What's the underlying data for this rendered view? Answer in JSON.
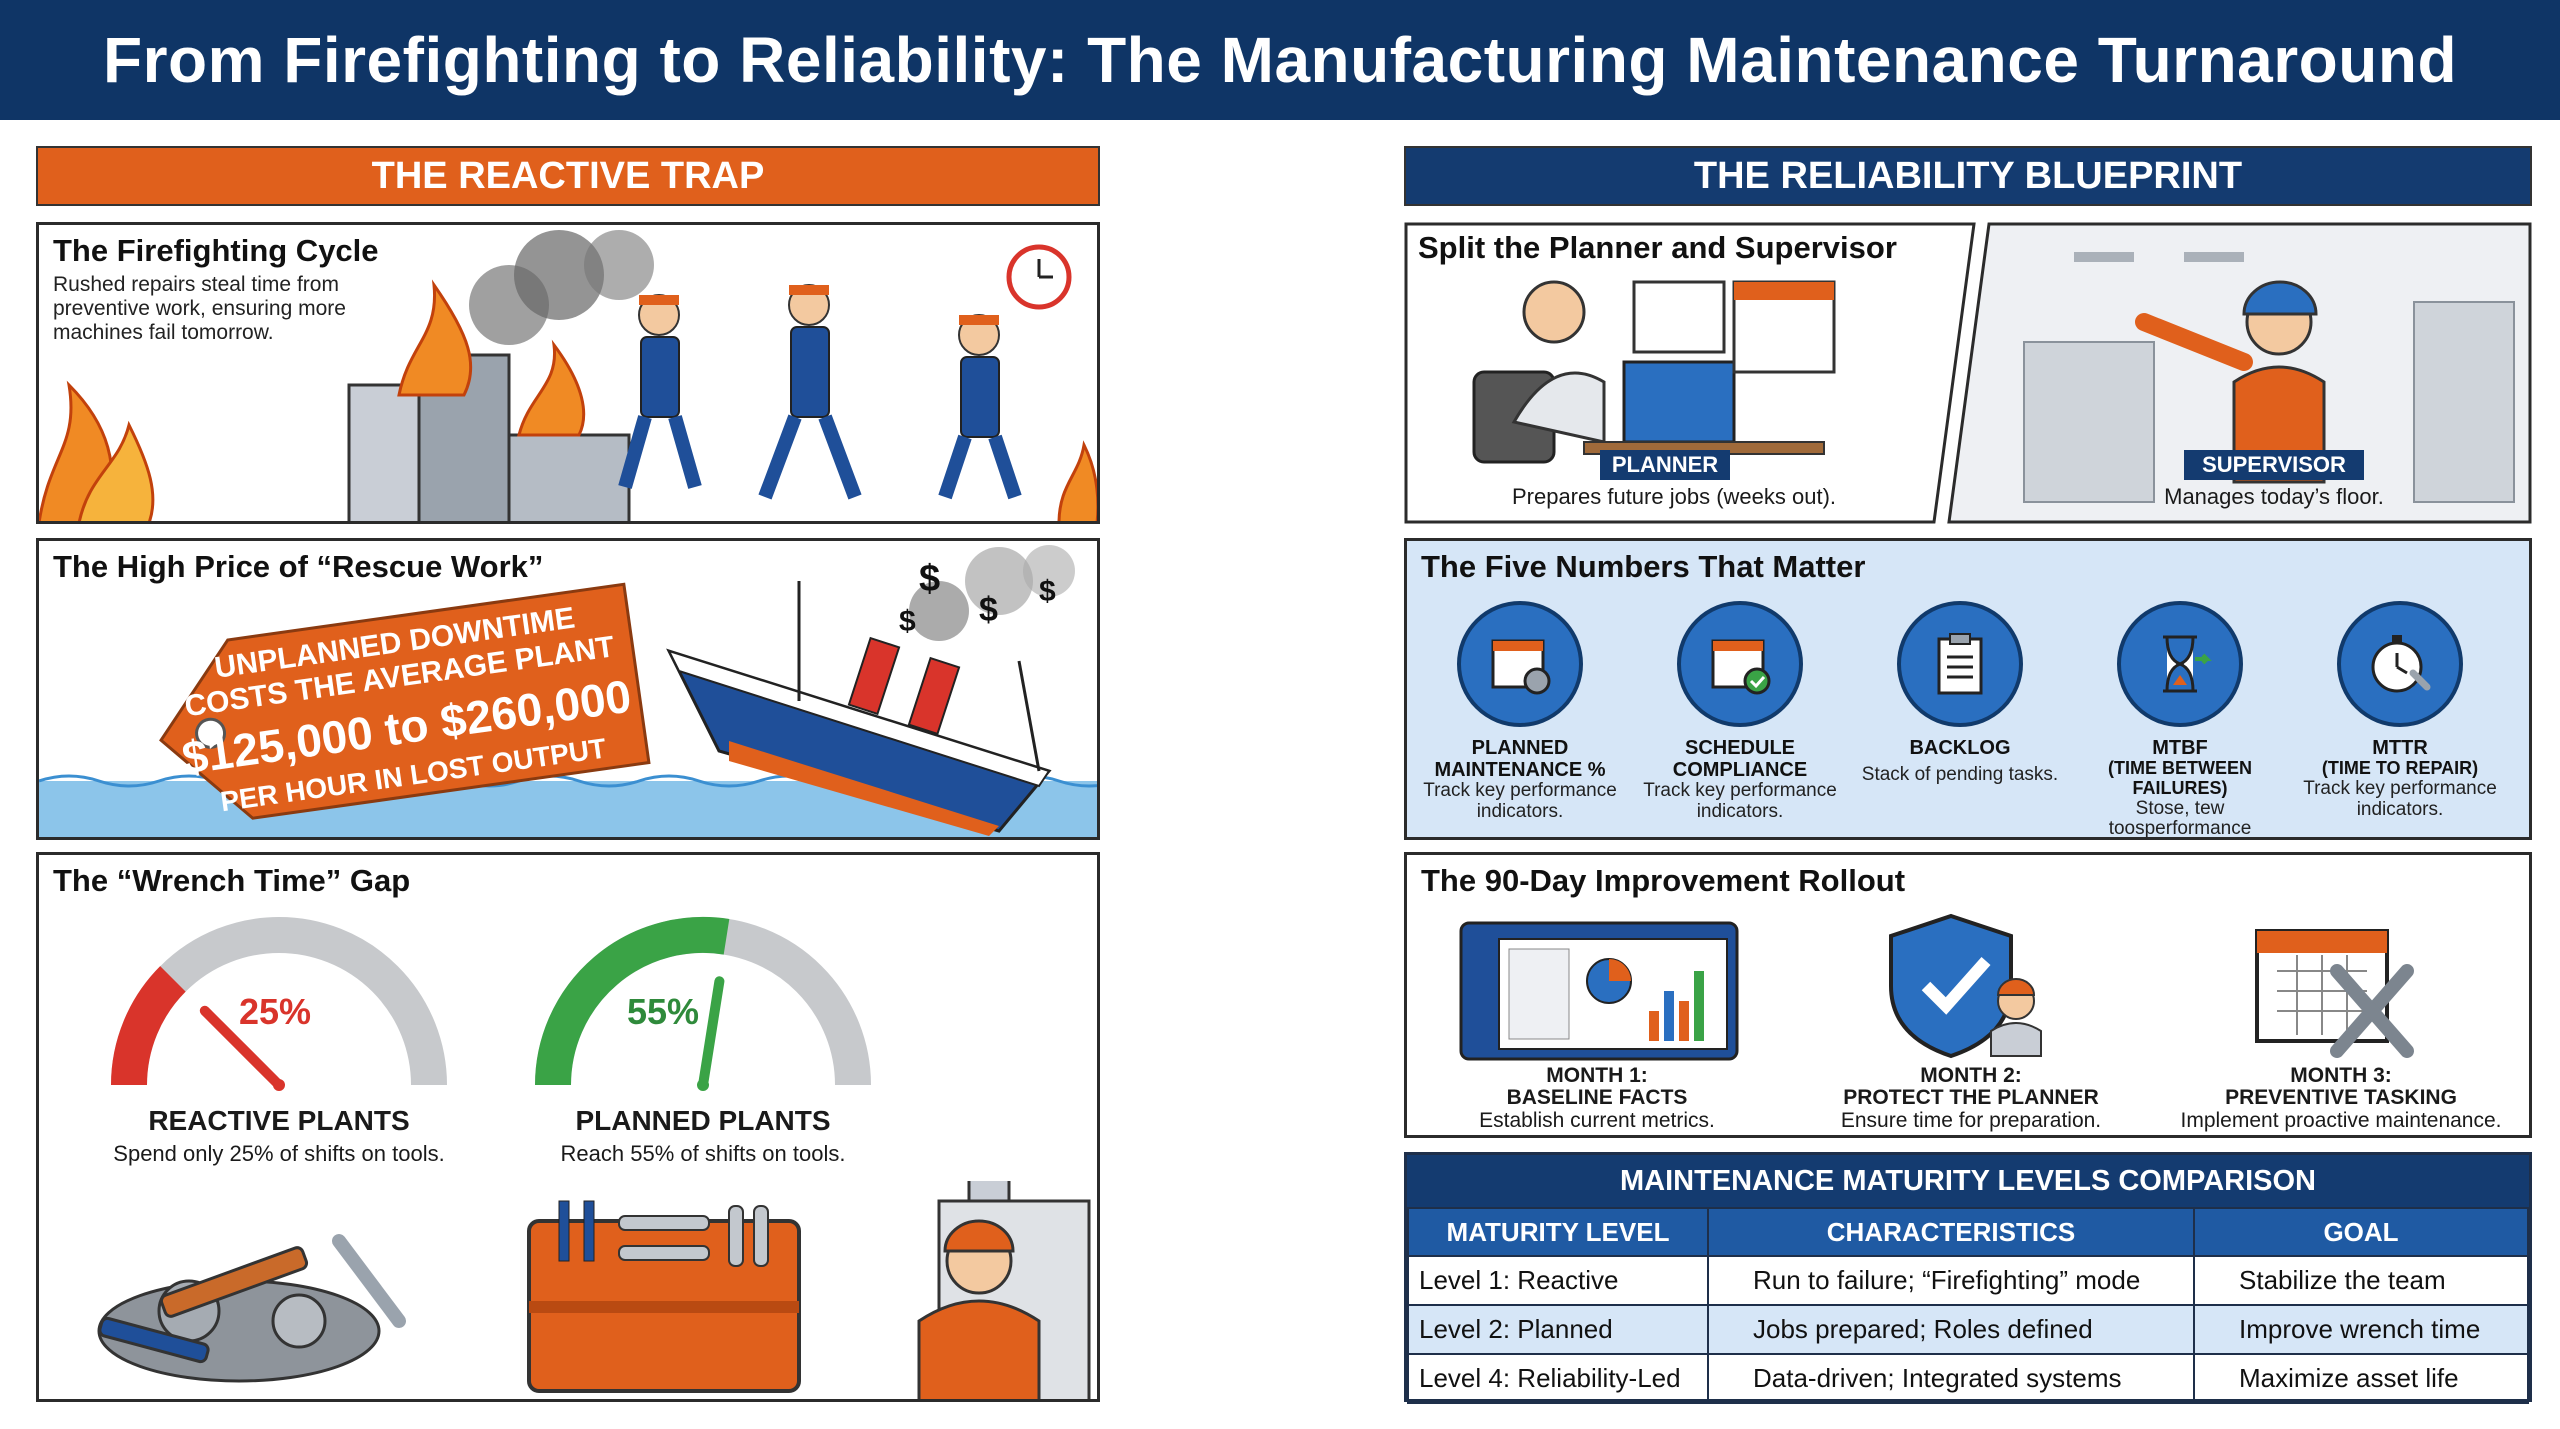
{
  "title": "From Firefighting to Reliability: The Manufacturing Maintenance Turnaround",
  "left": {
    "header": "THE REACTIVE TRAP",
    "firefighting": {
      "title": "The Firefighting Cycle",
      "text": "Rushed repairs steal time from preventive work, ensuring more machines fail tomorrow."
    },
    "rescue": {
      "title": "The High Price of “Rescue Work”",
      "tag_line1": "UNPLANNED DOWNTIME",
      "tag_line2": "COSTS THE AVERAGE PLANT",
      "tag_amount": "$125,000 to $260,000",
      "tag_line3": "PER HOUR IN LOST OUTPUT"
    },
    "wrench": {
      "title": "The “Wrench Time” Gap",
      "reactive": {
        "value": 25,
        "label": "25%",
        "name": "REACTIVE PLANTS",
        "desc": "Spend only 25% of shifts on tools."
      },
      "planned": {
        "value": 55,
        "label": "55%",
        "name": "PLANNED PLANTS",
        "desc": "Reach 55% of shifts on tools."
      }
    }
  },
  "right": {
    "header": "THE RELIABILITY BLUEPRINT",
    "split": {
      "title": "Split the Planner and Supervisor",
      "planner_label": "PLANNER",
      "planner_desc": "Prepares future jobs (weeks out).",
      "supervisor_label": "SUPERVISOR",
      "supervisor_desc": "Manages today’s floor."
    },
    "five": {
      "title": "The Five Numbers That Matter",
      "metrics": [
        {
          "name1": "PLANNED",
          "name2": "MAINTENANCE %",
          "desc": "Track key performance indicators."
        },
        {
          "name1": "SCHEDULE",
          "name2": "COMPLIANCE",
          "desc": "Track key performance indicators."
        },
        {
          "name1": "BACKLOG",
          "name2": "",
          "desc": "Stack of pending tasks."
        },
        {
          "name1": "MTBF",
          "name2": "(TIME BETWEEN FAILURES)",
          "desc": "Stose, tew toosperformance indicators."
        },
        {
          "name1": "MTTR",
          "name2": "(TIME TO REPAIR)",
          "desc": "Track key performance indicators."
        }
      ]
    },
    "rollout": {
      "title": "The 90-Day Improvement Rollout",
      "months": [
        {
          "month": "MONTH 1:",
          "name": "BASELINE FACTS",
          "desc": "Establish current metrics."
        },
        {
          "month": "MONTH 2:",
          "name": "PROTECT THE PLANNER",
          "desc": "Ensure time for preparation."
        },
        {
          "month": "MONTH 3:",
          "name": "PREVENTIVE TASKING",
          "desc": "Implement proactive maintenance."
        }
      ]
    },
    "table": {
      "title": "MAINTENANCE MATURITY LEVELS COMPARISON",
      "headers": [
        "MATURITY LEVEL",
        "CHARACTERISTICS",
        "GOAL"
      ],
      "rows": [
        [
          "Level 1: Reactive",
          "Run to failure; “Firefighting” mode",
          "Stabilize the team"
        ],
        [
          "Level 2: Planned",
          "Jobs prepared; Roles defined",
          "Improve wrench time"
        ],
        [
          "Level 4: Reliability-Led",
          "Data-driven; Integrated systems",
          "Maximize asset life"
        ]
      ]
    }
  },
  "colors": {
    "navy": "#0f3566",
    "orange": "#e0601c",
    "blue": "#2a6fc0",
    "light_blue": "#d6e6f7",
    "red": "#d9342b",
    "green": "#3aa346"
  }
}
